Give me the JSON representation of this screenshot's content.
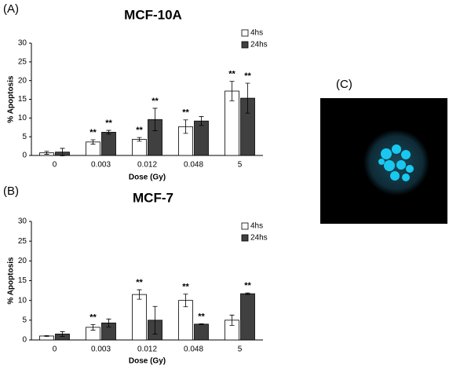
{
  "chart_data": [
    {
      "type": "bar",
      "panel_label": "(A)",
      "title": "MCF-10A",
      "x_label": "Dose (Gy)",
      "y_label": "% Apoptosis",
      "categories": [
        "0",
        "0.003",
        "0.012",
        "0.048",
        "5"
      ],
      "series": [
        {
          "name": "4hs",
          "color": "#ffffff",
          "values": [
            0.7,
            3.6,
            4.3,
            7.7,
            17.2
          ],
          "errors": [
            0.4,
            0.6,
            0.5,
            1.8,
            2.6
          ],
          "labels": [
            null,
            "**",
            "**",
            "**",
            "**"
          ]
        },
        {
          "name": "24hs",
          "color": "#404040",
          "values": [
            0.9,
            6.2,
            9.6,
            9.2,
            15.3
          ],
          "errors": [
            1.0,
            0.5,
            3.0,
            1.2,
            4.0
          ],
          "labels": [
            null,
            "**",
            "**",
            null,
            "**"
          ]
        }
      ],
      "ylim": [
        0,
        30
      ],
      "yticks": [
        0,
        5,
        10,
        15,
        20,
        25,
        30
      ],
      "legend": "upper right"
    },
    {
      "type": "bar",
      "panel_label": "(B)",
      "title": "MCF-7",
      "x_label": "Dose (Gy)",
      "y_label": "% Apoptosis",
      "categories": [
        "0",
        "0.003",
        "0.012",
        "0.048",
        "5"
      ],
      "series": [
        {
          "name": "4hs",
          "color": "#ffffff",
          "values": [
            1.0,
            3.2,
            11.5,
            10.0,
            5.0
          ],
          "errors": [
            0.1,
            0.7,
            1.2,
            1.6,
            1.3
          ],
          "labels": [
            null,
            "**",
            "**",
            "**",
            null
          ]
        },
        {
          "name": "24hs",
          "color": "#404040",
          "values": [
            1.5,
            4.3,
            5.0,
            4.0,
            11.7
          ],
          "errors": [
            0.6,
            1.0,
            3.5,
            0.1,
            0.2
          ],
          "labels": [
            null,
            null,
            null,
            "**",
            "**"
          ]
        }
      ],
      "ylim": [
        0,
        30
      ],
      "yticks": [
        0,
        5,
        10,
        15,
        20,
        25,
        30
      ],
      "legend": "upper right"
    }
  ],
  "image_panel": {
    "label": "(C)"
  }
}
